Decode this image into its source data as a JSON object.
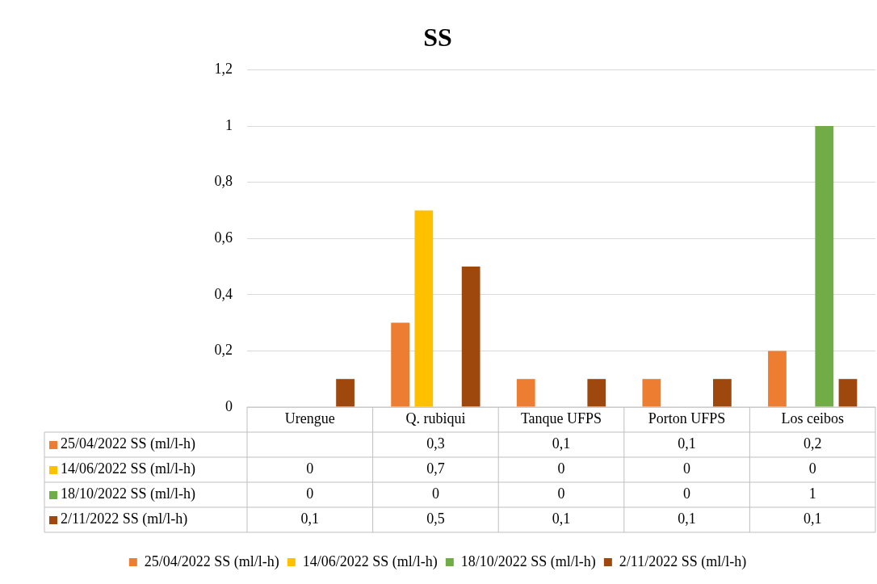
{
  "chart_data": {
    "type": "bar",
    "title": "SS",
    "categories": [
      "Urengue",
      "Q. rubiqui",
      "Tanque UFPS",
      "Porton UFPS",
      "Los ceibos"
    ],
    "series": [
      {
        "name": "25/04/2022 SS (ml/l-h)",
        "color": "#ed7d31",
        "values": [
          null,
          0.3,
          0.1,
          0.1,
          0.2
        ],
        "value_labels": [
          null,
          "0,3",
          "0,1",
          "0,1",
          "0,2"
        ]
      },
      {
        "name": "14/06/2022 SS (ml/l-h)",
        "color": "#ffc000",
        "values": [
          0,
          0.7,
          0,
          0,
          0
        ],
        "value_labels": [
          "0",
          "0,7",
          "0",
          "0",
          "0"
        ]
      },
      {
        "name": "18/10/2022 SS (ml/l-h)",
        "color": "#70ad47",
        "values": [
          0,
          0,
          0,
          0,
          1
        ],
        "value_labels": [
          "0",
          "0",
          "0",
          "0",
          "1"
        ]
      },
      {
        "name": "2/11/2022 SS (ml/l-h)",
        "color": "#9e480e",
        "values": [
          0.1,
          0.5,
          0.1,
          0.1,
          0.1
        ],
        "value_labels": [
          "0,1",
          "0,5",
          "0,1",
          "0,1",
          "0,1"
        ]
      }
    ],
    "ylim": [
      0,
      1.2
    ],
    "yticks": [
      0,
      {
        "value": 0.2,
        "label": "0,2"
      },
      {
        "value": 0.4,
        "label": "0,4"
      },
      {
        "value": 0.6,
        "label": "0,6"
      },
      {
        "value": 0.8,
        "label": "0,8"
      },
      1,
      {
        "value": 1.2,
        "label": "1,2"
      }
    ],
    "grid": "y",
    "legend": "bottom"
  }
}
